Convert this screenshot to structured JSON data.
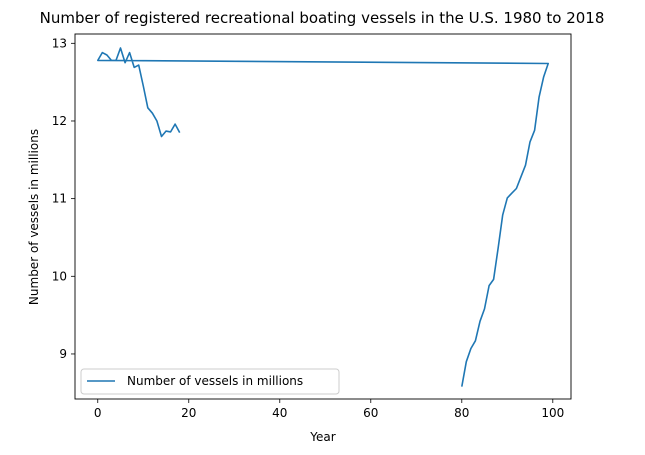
{
  "chart_data": {
    "type": "line",
    "title": "Number of registered recreational boating vessels in the U.S. 1980 to 2018",
    "xlabel": "Year",
    "ylabel": "Number of vessels in millions",
    "xlim": [
      -5,
      104
    ],
    "ylim": [
      8.42,
      13.12
    ],
    "xticks": [
      0,
      20,
      40,
      60,
      80,
      100
    ],
    "yticks": [
      9,
      10,
      11,
      12,
      13
    ],
    "grid": false,
    "legend_position": "lower-left",
    "series": [
      {
        "name": "Number of vessels in millions",
        "color": "#1f77b4",
        "x": [
          80,
          81,
          82,
          83,
          84,
          85,
          86,
          87,
          88,
          89,
          90,
          91,
          92,
          93,
          94,
          95,
          96,
          97,
          98,
          99,
          0,
          1,
          2,
          3,
          4,
          5,
          6,
          7,
          8,
          9,
          10,
          11,
          12,
          13,
          14,
          15,
          16,
          17,
          18
        ],
        "y": [
          8.58,
          8.9,
          9.07,
          9.17,
          9.42,
          9.58,
          9.88,
          9.96,
          10.37,
          10.79,
          11.01,
          11.07,
          11.13,
          11.28,
          11.43,
          11.73,
          11.88,
          12.31,
          12.57,
          12.74,
          12.78,
          12.88,
          12.85,
          12.78,
          12.78,
          12.94,
          12.75,
          12.88,
          12.69,
          12.72,
          12.45,
          12.17,
          12.1,
          12.0,
          11.8,
          11.87,
          11.86,
          11.96,
          11.85
        ]
      }
    ]
  }
}
